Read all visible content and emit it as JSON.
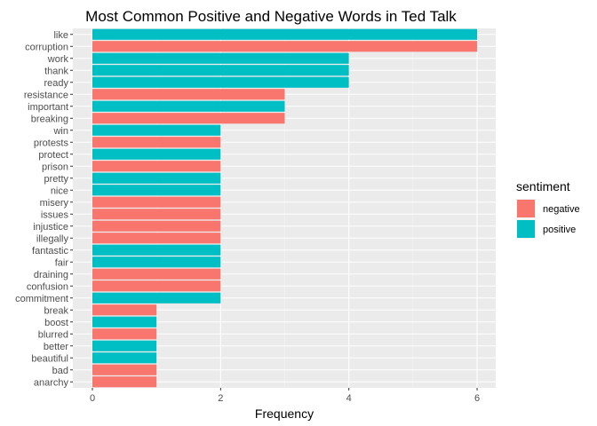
{
  "chart_data": {
    "type": "bar",
    "orientation": "horizontal",
    "title": "Most Common Positive and Negative Words in Ted Talk",
    "xlabel": "Frequency",
    "ylabel": "",
    "xlim": [
      0,
      6
    ],
    "x_ticks": [
      0,
      2,
      4,
      6
    ],
    "grid": true,
    "legend": {
      "title": "sentiment",
      "position": "right",
      "entries": [
        {
          "name": "negative",
          "color": "#F8766D"
        },
        {
          "name": "positive",
          "color": "#00BFC4"
        }
      ]
    },
    "categories": [
      "like",
      "corruption",
      "work",
      "thank",
      "ready",
      "resistance",
      "important",
      "breaking",
      "win",
      "protests",
      "protect",
      "prison",
      "pretty",
      "nice",
      "misery",
      "issues",
      "injustice",
      "illegally",
      "fantastic",
      "fair",
      "draining",
      "confusion",
      "commitment",
      "break",
      "boost",
      "blurred",
      "better",
      "beautiful",
      "bad",
      "anarchy"
    ],
    "values": [
      6,
      6,
      4,
      4,
      4,
      3,
      3,
      3,
      2,
      2,
      2,
      2,
      2,
      2,
      2,
      2,
      2,
      2,
      2,
      2,
      2,
      2,
      2,
      1,
      1,
      1,
      1,
      1,
      1,
      1
    ],
    "sentiment": [
      "positive",
      "negative",
      "positive",
      "positive",
      "positive",
      "negative",
      "positive",
      "negative",
      "positive",
      "negative",
      "positive",
      "negative",
      "positive",
      "positive",
      "negative",
      "negative",
      "negative",
      "negative",
      "positive",
      "positive",
      "negative",
      "negative",
      "positive",
      "negative",
      "positive",
      "negative",
      "positive",
      "positive",
      "negative",
      "negative"
    ]
  },
  "colors": {
    "panel_background": "#EBEBEB",
    "grid_major": "#FFFFFF",
    "text": "#4D4D4D",
    "title": "#000000"
  }
}
